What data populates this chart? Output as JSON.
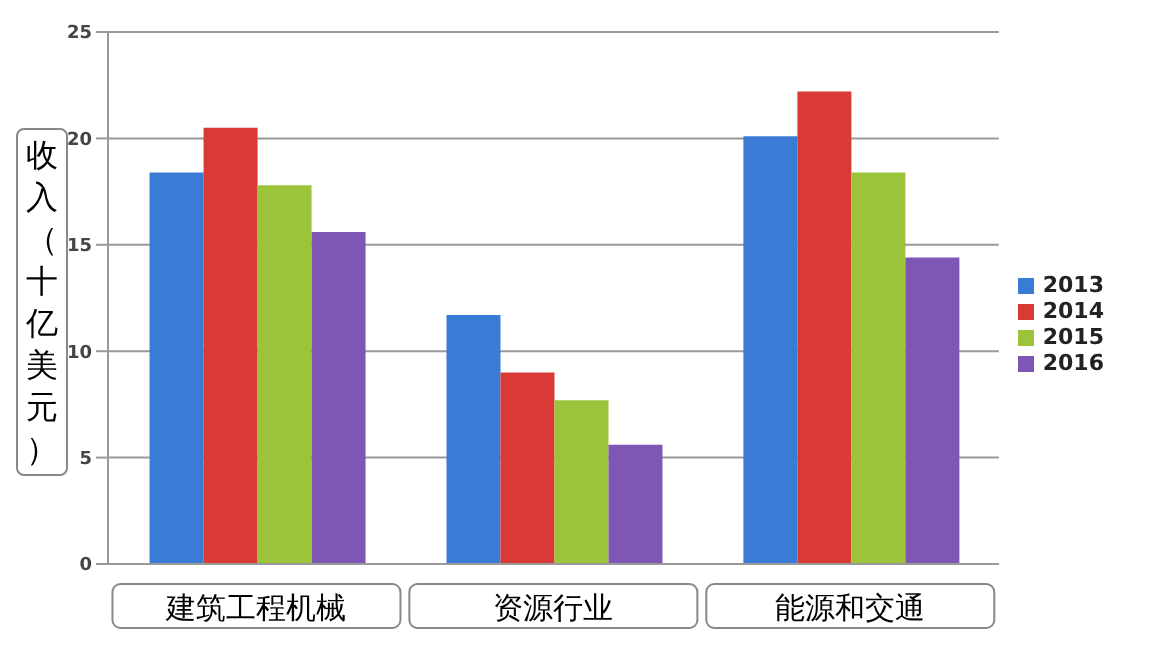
{
  "chart_data": {
    "type": "bar",
    "ylabel": "收入（十亿美元）",
    "categories": [
      "建筑工程机械",
      "资源行业",
      "能源和交通"
    ],
    "series": [
      {
        "name": "2013",
        "color": "#3a7bd5",
        "values": [
          18.4,
          11.7,
          20.1
        ]
      },
      {
        "name": "2014",
        "color": "#d93a36",
        "values": [
          20.5,
          9.0,
          22.2
        ]
      },
      {
        "name": "2015",
        "color": "#9bc43a",
        "values": [
          17.8,
          7.7,
          18.4
        ]
      },
      {
        "name": "2016",
        "color": "#7e57b4",
        "values": [
          15.6,
          5.6,
          14.4
        ]
      }
    ],
    "ylim": [
      0,
      25
    ],
    "yticks": [
      0,
      5,
      10,
      15,
      20,
      25
    ],
    "grid": "y",
    "legend": "right"
  }
}
